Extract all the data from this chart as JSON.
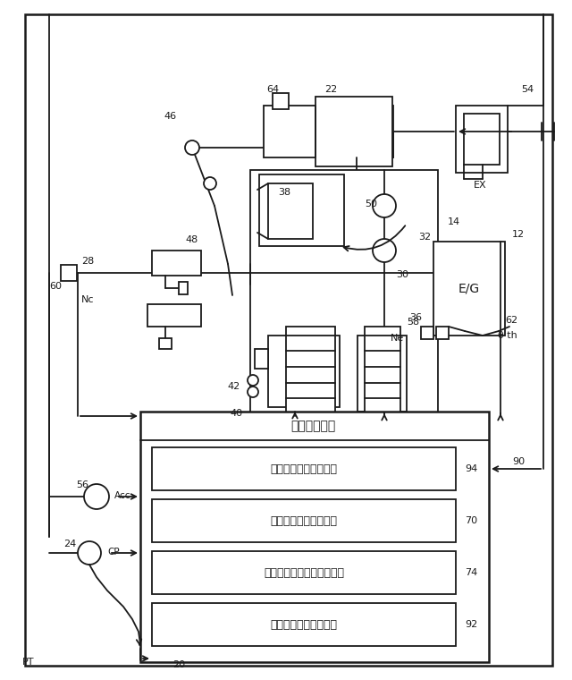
{
  "bg_color": "#ffffff",
  "line_color": "#1a1a1a",
  "fig_width": 6.4,
  "fig_height": 7.6,
  "ecu_boxes": [
    "アクチュエータ制御部",
    "ストローク位置判定部",
    "ストローク進行方向判定部",
    "伝達トルク速度判定部"
  ],
  "ecu_title": "電子制御装置"
}
